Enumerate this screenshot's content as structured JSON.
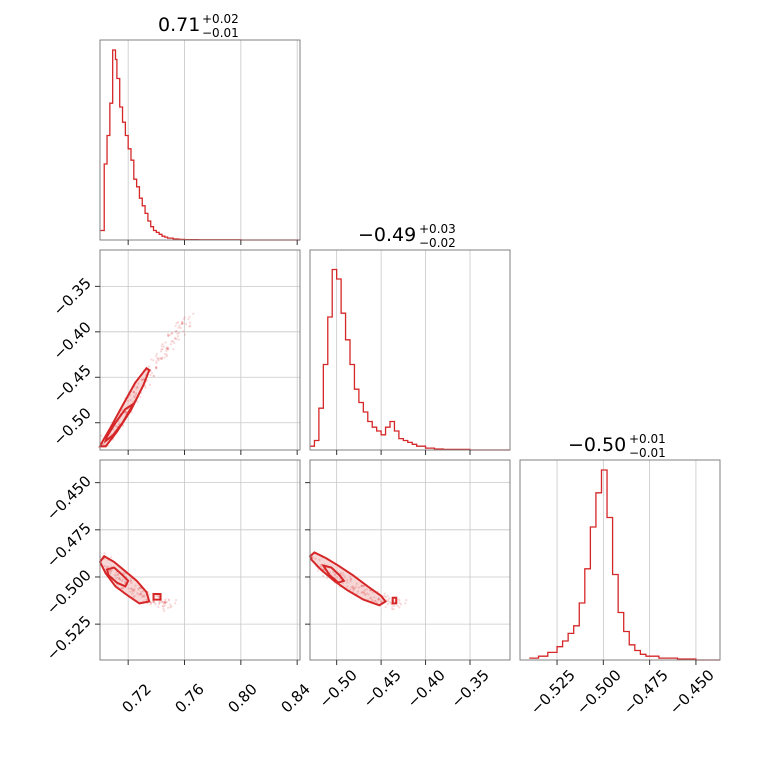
{
  "colors": {
    "accent": "#d62728",
    "fill": "#f4c5c5",
    "frame": "#808080",
    "grid": "#c8c8c8"
  },
  "titles": [
    {
      "main": "0.71",
      "sup": "+0.02",
      "sub": "−0.01"
    },
    {
      "main": "−0.49",
      "sup": "+0.03",
      "sub": "−0.02"
    },
    {
      "main": "−0.50",
      "sup": "+0.01",
      "sub": "−0.01"
    }
  ],
  "chart_data": [
    {
      "type": "histogram",
      "parameter": 1,
      "xlim": [
        0.7,
        0.842
      ],
      "ylim": [
        0,
        1.0
      ],
      "grid": true,
      "x": [
        0.7,
        0.703,
        0.705,
        0.707,
        0.709,
        0.711,
        0.712,
        0.714,
        0.716,
        0.718,
        0.72,
        0.722,
        0.724,
        0.726,
        0.728,
        0.73,
        0.732,
        0.734,
        0.736,
        0.738,
        0.74,
        0.742,
        0.744,
        0.746,
        0.748,
        0.75,
        0.752,
        0.754,
        0.756,
        0.758,
        0.76,
        0.77,
        0.78,
        0.8,
        0.82,
        0.84
      ],
      "values": [
        0.05,
        0.4,
        0.55,
        0.72,
        1.0,
        0.95,
        0.85,
        0.7,
        0.62,
        0.55,
        0.48,
        0.42,
        0.32,
        0.28,
        0.22,
        0.18,
        0.14,
        0.1,
        0.07,
        0.05,
        0.04,
        0.03,
        0.02,
        0.015,
        0.01,
        0.01,
        0.005,
        0.005,
        0.003,
        0.003,
        0.002,
        0.001,
        0.001,
        0.0,
        0.0,
        0.0
      ]
    },
    {
      "type": "histogram",
      "parameter": 2,
      "xlim": [
        -0.53,
        -0.305
      ],
      "ylim": [
        0,
        1.0
      ],
      "grid": true,
      "x": [
        -0.53,
        -0.525,
        -0.52,
        -0.515,
        -0.51,
        -0.505,
        -0.5,
        -0.495,
        -0.49,
        -0.485,
        -0.48,
        -0.475,
        -0.47,
        -0.465,
        -0.46,
        -0.455,
        -0.45,
        -0.445,
        -0.44,
        -0.435,
        -0.43,
        -0.425,
        -0.42,
        -0.415,
        -0.41,
        -0.4,
        -0.39,
        -0.38,
        -0.35
      ],
      "values": [
        0.02,
        0.05,
        0.22,
        0.45,
        0.7,
        0.95,
        0.9,
        0.72,
        0.58,
        0.45,
        0.32,
        0.25,
        0.2,
        0.15,
        0.12,
        0.1,
        0.08,
        0.12,
        0.15,
        0.1,
        0.06,
        0.05,
        0.04,
        0.03,
        0.02,
        0.01,
        0.005,
        0.003,
        0.0
      ]
    },
    {
      "type": "histogram",
      "parameter": 3,
      "xlim": [
        -0.545,
        -0.437
      ],
      "ylim": [
        0,
        1.0
      ],
      "grid": true,
      "x": [
        -0.54,
        -0.535,
        -0.53,
        -0.525,
        -0.522,
        -0.519,
        -0.516,
        -0.513,
        -0.51,
        -0.507,
        -0.504,
        -0.501,
        -0.498,
        -0.495,
        -0.492,
        -0.489,
        -0.486,
        -0.483,
        -0.48,
        -0.477,
        -0.47,
        -0.46,
        -0.45
      ],
      "values": [
        0.01,
        0.02,
        0.04,
        0.07,
        0.1,
        0.14,
        0.18,
        0.3,
        0.48,
        0.7,
        0.88,
        1.0,
        0.75,
        0.45,
        0.25,
        0.15,
        0.08,
        0.05,
        0.03,
        0.02,
        0.01,
        0.005,
        0.0
      ]
    },
    {
      "type": "scatter",
      "row": 2,
      "col": 1,
      "xlim": [
        0.7,
        0.842
      ],
      "ylim": [
        -0.53,
        -0.31
      ],
      "grid": true,
      "points_x": [
        0.702,
        0.705,
        0.708,
        0.71,
        0.712,
        0.714,
        0.716,
        0.718,
        0.72,
        0.722,
        0.724,
        0.726,
        0.728,
        0.73,
        0.732,
        0.734,
        0.736,
        0.738,
        0.74,
        0.742,
        0.744,
        0.746,
        0.748,
        0.75,
        0.752,
        0.754,
        0.756,
        0.758,
        0.76,
        0.762
      ],
      "points_y": [
        -0.525,
        -0.52,
        -0.512,
        -0.508,
        -0.503,
        -0.498,
        -0.493,
        -0.488,
        -0.482,
        -0.478,
        -0.472,
        -0.466,
        -0.462,
        -0.457,
        -0.452,
        -0.447,
        -0.443,
        -0.438,
        -0.433,
        -0.428,
        -0.424,
        -0.42,
        -0.415,
        -0.411,
        -0.407,
        -0.402,
        -0.398,
        -0.394,
        -0.39,
        -0.385
      ],
      "contours": [
        {
          "x": [
            0.7,
            0.704,
            0.712,
            0.722,
            0.731,
            0.735,
            0.733,
            0.725,
            0.716,
            0.708,
            0.702,
            0.7
          ],
          "y": [
            -0.526,
            -0.526,
            -0.51,
            -0.486,
            -0.458,
            -0.442,
            -0.44,
            -0.456,
            -0.481,
            -0.504,
            -0.52,
            -0.526
          ]
        },
        {
          "x": [
            0.704,
            0.709,
            0.716,
            0.722,
            0.723,
            0.718,
            0.711,
            0.705,
            0.704
          ],
          "y": [
            -0.52,
            -0.514,
            -0.5,
            -0.484,
            -0.48,
            -0.485,
            -0.5,
            -0.515,
            -0.52
          ]
        }
      ]
    },
    {
      "type": "scatter",
      "row": 3,
      "col": 1,
      "xlim": [
        0.7,
        0.842
      ],
      "ylim": [
        -0.544,
        -0.438
      ],
      "grid": true,
      "points_x": [
        0.702,
        0.704,
        0.706,
        0.708,
        0.71,
        0.712,
        0.714,
        0.716,
        0.718,
        0.72,
        0.722,
        0.724,
        0.726,
        0.728,
        0.73,
        0.732,
        0.734,
        0.736,
        0.738,
        0.74,
        0.742,
        0.744,
        0.746,
        0.748,
        0.75
      ],
      "points_y": [
        -0.49,
        -0.492,
        -0.495,
        -0.497,
        -0.498,
        -0.499,
        -0.5,
        -0.502,
        -0.503,
        -0.504,
        -0.505,
        -0.506,
        -0.507,
        -0.508,
        -0.509,
        -0.51,
        -0.511,
        -0.512,
        -0.512,
        -0.513,
        -0.513,
        -0.514,
        -0.514,
        -0.515,
        -0.515
      ],
      "contours": [
        {
          "x": [
            0.7,
            0.703,
            0.71,
            0.718,
            0.726,
            0.733,
            0.735,
            0.728,
            0.72,
            0.711,
            0.704,
            0.7
          ],
          "y": [
            -0.492,
            -0.489,
            -0.492,
            -0.497,
            -0.502,
            -0.508,
            -0.513,
            -0.514,
            -0.51,
            -0.505,
            -0.498,
            -0.492
          ]
        },
        {
          "x": [
            0.705,
            0.71,
            0.716,
            0.72,
            0.718,
            0.712,
            0.706,
            0.705
          ],
          "y": [
            -0.496,
            -0.495,
            -0.499,
            -0.502,
            -0.505,
            -0.503,
            -0.499,
            -0.496
          ]
        },
        {
          "x": [
            0.738,
            0.743,
            0.743,
            0.738,
            0.738
          ],
          "y": [
            -0.509,
            -0.509,
            -0.512,
            -0.512,
            -0.509
          ]
        }
      ]
    },
    {
      "type": "scatter",
      "row": 3,
      "col": 2,
      "xlim": [
        -0.53,
        -0.305
      ],
      "ylim": [
        -0.544,
        -0.438
      ],
      "grid": true,
      "points_x": [
        -0.528,
        -0.522,
        -0.518,
        -0.514,
        -0.51,
        -0.505,
        -0.5,
        -0.496,
        -0.492,
        -0.488,
        -0.484,
        -0.48,
        -0.476,
        -0.472,
        -0.468,
        -0.464,
        -0.46,
        -0.456,
        -0.452,
        -0.448,
        -0.444,
        -0.44,
        -0.436,
        -0.432,
        -0.428
      ],
      "points_y": [
        -0.49,
        -0.492,
        -0.494,
        -0.496,
        -0.498,
        -0.499,
        -0.5,
        -0.501,
        -0.502,
        -0.503,
        -0.504,
        -0.505,
        -0.506,
        -0.507,
        -0.508,
        -0.509,
        -0.51,
        -0.511,
        -0.512,
        -0.512,
        -0.513,
        -0.513,
        -0.514,
        -0.514,
        -0.515
      ],
      "contours": [
        {
          "x": [
            -0.53,
            -0.525,
            -0.512,
            -0.498,
            -0.482,
            -0.465,
            -0.45,
            -0.445,
            -0.452,
            -0.47,
            -0.488,
            -0.503,
            -0.518,
            -0.528,
            -0.53
          ],
          "y": [
            -0.489,
            -0.487,
            -0.49,
            -0.494,
            -0.499,
            -0.505,
            -0.51,
            -0.513,
            -0.515,
            -0.512,
            -0.507,
            -0.502,
            -0.496,
            -0.491,
            -0.489
          ]
        },
        {
          "x": [
            -0.515,
            -0.506,
            -0.497,
            -0.492,
            -0.498,
            -0.508,
            -0.515
          ],
          "y": [
            -0.494,
            -0.495,
            -0.499,
            -0.502,
            -0.503,
            -0.499,
            -0.494
          ]
        },
        {
          "x": [
            -0.437,
            -0.433,
            -0.433,
            -0.437,
            -0.437
          ],
          "y": [
            -0.511,
            -0.511,
            -0.514,
            -0.514,
            -0.511
          ]
        }
      ]
    }
  ],
  "axes": {
    "x_col1": [
      "0.72",
      "0.76",
      "0.80",
      "0.84"
    ],
    "x_col2": [
      "−0.50",
      "−0.45",
      "−0.40",
      "−0.35"
    ],
    "x_col3": [
      "−0.525",
      "−0.500",
      "−0.475",
      "−0.450"
    ],
    "y_row2": [
      "−0.35",
      "−0.40",
      "−0.45",
      "−0.50"
    ],
    "y_row3": [
      "−0.450",
      "−0.475",
      "−0.500",
      "−0.525"
    ]
  }
}
